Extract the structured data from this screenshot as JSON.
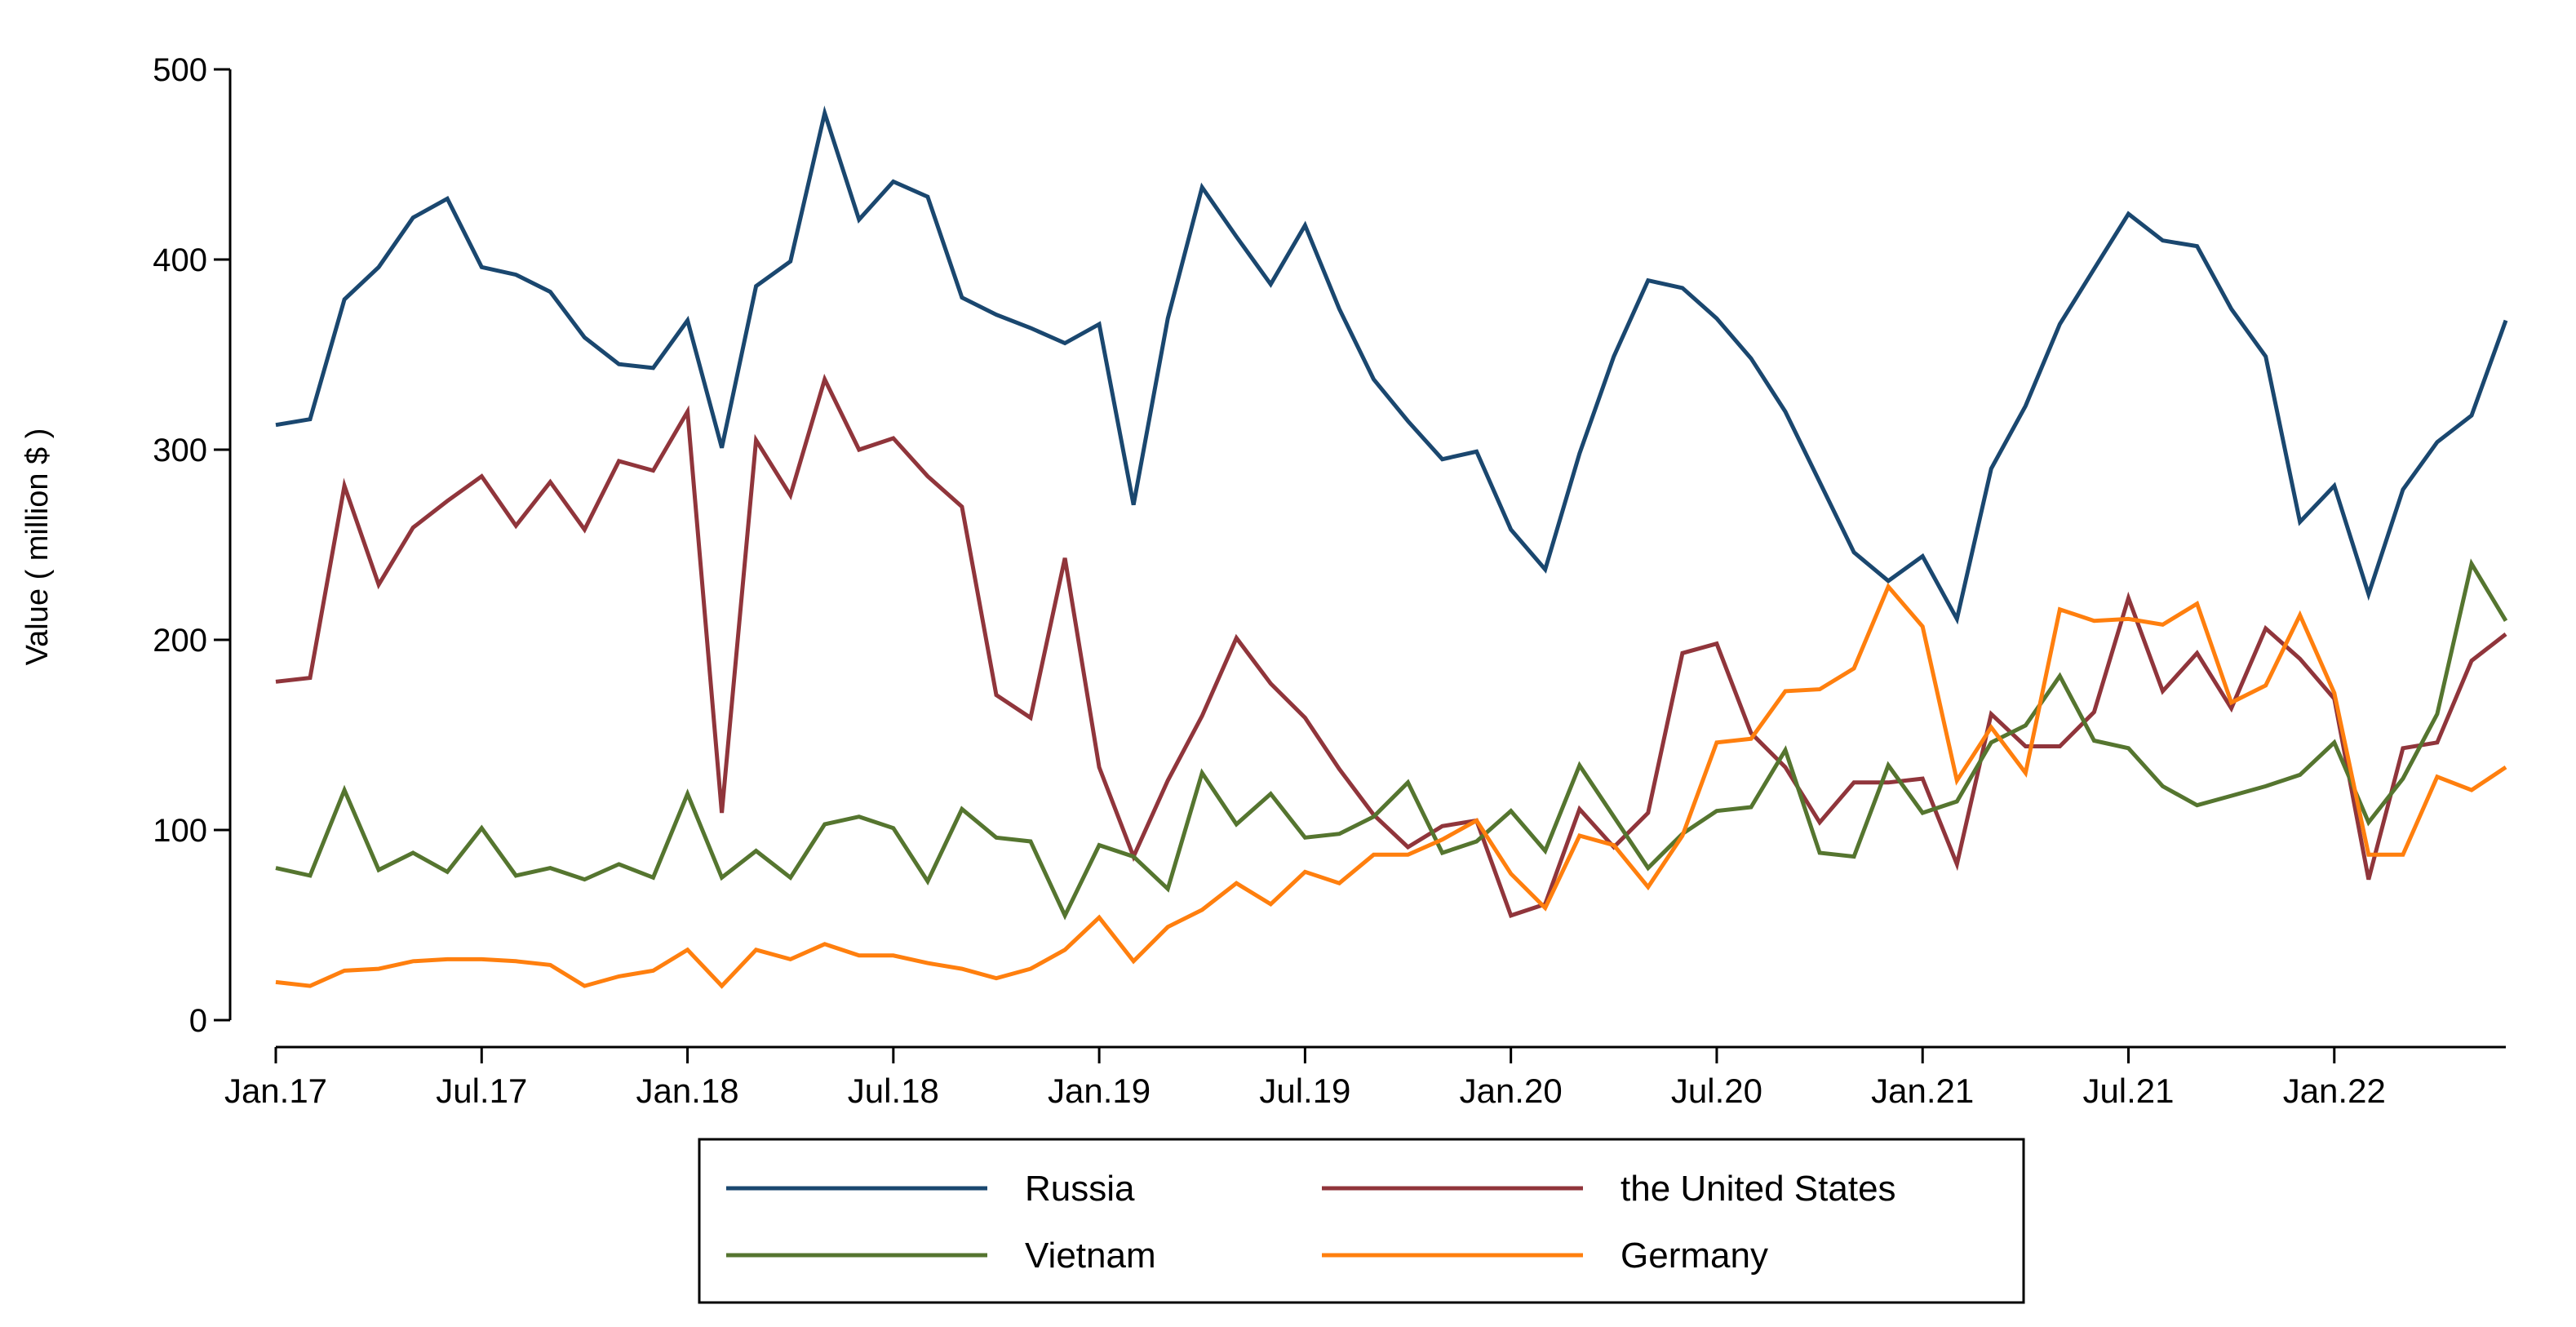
{
  "chart_data": {
    "type": "line",
    "title": "",
    "xlabel": "",
    "ylabel": "Value ( million $ )",
    "ylim": [
      0,
      500
    ],
    "yticks": [
      0,
      100,
      200,
      300,
      400,
      500
    ],
    "xlim": [
      0,
      65
    ],
    "x_tick_labels": [
      {
        "index": 0,
        "label": "Jan.17"
      },
      {
        "index": 6,
        "label": "Jul.17"
      },
      {
        "index": 12,
        "label": "Jan.18"
      },
      {
        "index": 18,
        "label": "Jul.18"
      },
      {
        "index": 24,
        "label": "Jan.19"
      },
      {
        "index": 30,
        "label": "Jul.19"
      },
      {
        "index": 36,
        "label": "Jan.20"
      },
      {
        "index": 42,
        "label": "Jul.20"
      },
      {
        "index": 48,
        "label": "Jan.21"
      },
      {
        "index": 54,
        "label": "Jul.21"
      },
      {
        "index": 60,
        "label": "Jan.22"
      }
    ],
    "grid": false,
    "legend": {
      "position": "bottom",
      "columns": 2
    },
    "series": [
      {
        "name": "Russia",
        "color": "#1a476f",
        "values": [
          313,
          316,
          379,
          396,
          422,
          432,
          396,
          392,
          383,
          359,
          345,
          343,
          368,
          301,
          386,
          399,
          477,
          421,
          441,
          433,
          380,
          371,
          364,
          356,
          366,
          271,
          369,
          438,
          412,
          387,
          418,
          374,
          337,
          315,
          295,
          299,
          258,
          237,
          298,
          349,
          389,
          385,
          369,
          348,
          320,
          283,
          246,
          231,
          244,
          211,
          290,
          323,
          366,
          395,
          424,
          410,
          407,
          374,
          349,
          262,
          281,
          224,
          279,
          304,
          318,
          368
        ]
      },
      {
        "name": "the United States",
        "color": "#90353b",
        "values": [
          178,
          180,
          281,
          229,
          259,
          273,
          286,
          260,
          283,
          258,
          294,
          289,
          320,
          109,
          305,
          276,
          337,
          300,
          306,
          286,
          270,
          171,
          159,
          243,
          133,
          86,
          126,
          160,
          201,
          177,
          159,
          132,
          108,
          91,
          102,
          105,
          55,
          61,
          111,
          91,
          109,
          193,
          198,
          151,
          133,
          104,
          125,
          125,
          127,
          82,
          161,
          144,
          144,
          162,
          222,
          173,
          193,
          164,
          206,
          190,
          169,
          74,
          143,
          146,
          189,
          203
        ]
      },
      {
        "name": "Vietnam",
        "color": "#55752f",
        "values": [
          80,
          76,
          121,
          79,
          88,
          78,
          101,
          76,
          80,
          74,
          82,
          75,
          119,
          75,
          89,
          75,
          103,
          107,
          101,
          73,
          111,
          96,
          94,
          55,
          92,
          86,
          69,
          130,
          103,
          119,
          96,
          98,
          107,
          125,
          88,
          94,
          110,
          89,
          134,
          107,
          80,
          98,
          110,
          112,
          142,
          88,
          86,
          134,
          109,
          115,
          146,
          155,
          181,
          147,
          143,
          123,
          113,
          118,
          123,
          129,
          146,
          104,
          127,
          161,
          240,
          210
        ]
      },
      {
        "name": "Germany",
        "color": "#ff7f0e",
        "values": [
          20,
          18,
          26,
          27,
          31,
          32,
          32,
          31,
          29,
          18,
          23,
          26,
          37,
          18,
          37,
          32,
          40,
          34,
          34,
          30,
          27,
          22,
          27,
          37,
          54,
          31,
          49,
          58,
          72,
          61,
          78,
          72,
          87,
          87,
          95,
          105,
          77,
          59,
          97,
          92,
          70,
          97,
          146,
          148,
          173,
          174,
          185,
          228,
          207,
          126,
          154,
          130,
          216,
          210,
          211,
          208,
          219,
          167,
          176,
          213,
          172,
          87,
          87,
          128,
          121,
          133
        ]
      }
    ]
  }
}
